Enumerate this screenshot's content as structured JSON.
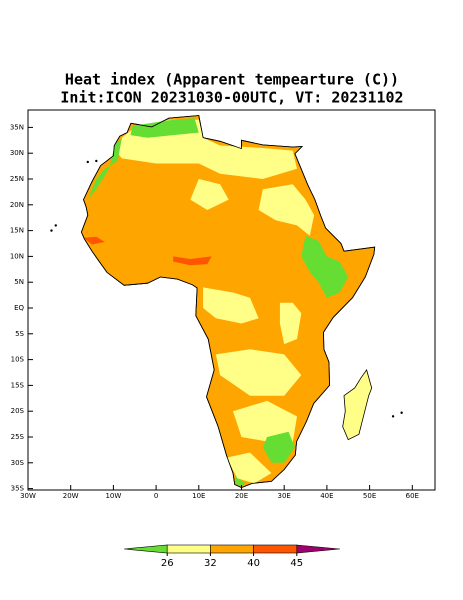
{
  "title": "Heat index (Apparent tempearture (C))",
  "subtitle": "Init:ICON 20231030-00UTC, VT: 20231102",
  "map": {
    "lon_ticks": [
      {
        "value": -30,
        "label": "30W"
      },
      {
        "value": -20,
        "label": "20W"
      },
      {
        "value": -10,
        "label": "10W"
      },
      0,
      {
        "value": 10,
        "label": "10E"
      },
      {
        "value": 20,
        "label": "20E"
      },
      {
        "value": 30,
        "label": "30E"
      },
      {
        "value": 40,
        "label": "40E"
      },
      {
        "value": 50,
        "label": "50E"
      },
      {
        "value": 60,
        "label": "60E"
      }
    ],
    "lat_ticks": [
      {
        "value": 35,
        "label": "35N"
      },
      {
        "value": 30,
        "label": "30N"
      },
      {
        "value": 25,
        "label": "25N"
      },
      {
        "value": 20,
        "label": "20N"
      },
      {
        "value": 15,
        "label": "15N"
      },
      {
        "value": 10,
        "label": "10N"
      },
      {
        "value": 5,
        "label": "5N"
      },
      {
        "value": 0,
        "label": "EQ"
      },
      {
        "value": -5,
        "label": "5S"
      },
      {
        "value": -10,
        "label": "10S"
      },
      {
        "value": -15,
        "label": "15S"
      },
      {
        "value": -20,
        "label": "20S"
      },
      {
        "value": -25,
        "label": "25S"
      },
      {
        "value": -30,
        "label": "30S"
      },
      {
        "value": -35,
        "label": "35S"
      }
    ]
  },
  "colorbar": {
    "levels": [
      26,
      32,
      40,
      45
    ],
    "colors": [
      "#66dd33",
      "#ffff88",
      "#ffa500",
      "#ff5500",
      "#a0006e"
    ]
  }
}
